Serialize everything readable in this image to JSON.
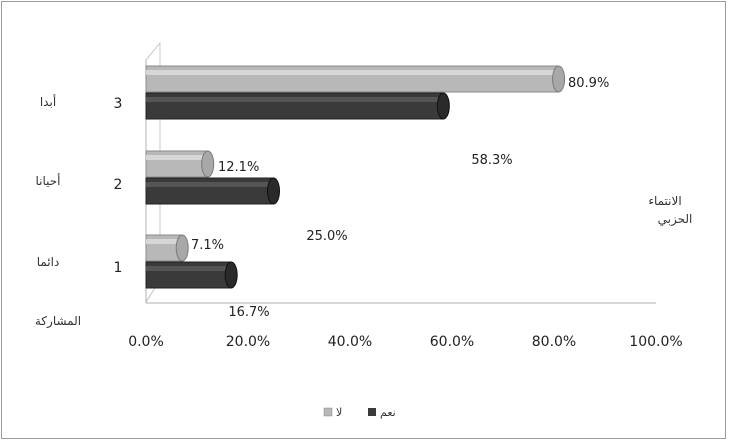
{
  "chart_data": {
    "type": "bar",
    "orientation": "horizontal",
    "categories": [
      {
        "num": "1",
        "label": "دائما"
      },
      {
        "num": "2",
        "label": "أحيانا"
      },
      {
        "num": "3",
        "label": "أبدا"
      }
    ],
    "series": [
      {
        "name": "نعم",
        "color": "#3a3a3a",
        "values": [
          16.7,
          25.0,
          58.3
        ]
      },
      {
        "name": "لا",
        "color": "#b8b8b8",
        "values": [
          7.1,
          12.1,
          80.9
        ]
      }
    ],
    "data_labels": {
      "نعم": [
        "16.7%",
        "25.0%",
        "58.3%"
      ],
      "لا": [
        "7.1%",
        "12.1%",
        "80.9%"
      ]
    },
    "x_ticks": [
      "0.0%",
      "20.0%",
      "40.0%",
      "60.0%",
      "80.0%",
      "100.0%"
    ],
    "xlim": [
      0,
      100
    ],
    "ylabel": "المشاركة",
    "side_label": [
      "الانتماء",
      "الحزبي"
    ],
    "legend_position": "bottom"
  }
}
